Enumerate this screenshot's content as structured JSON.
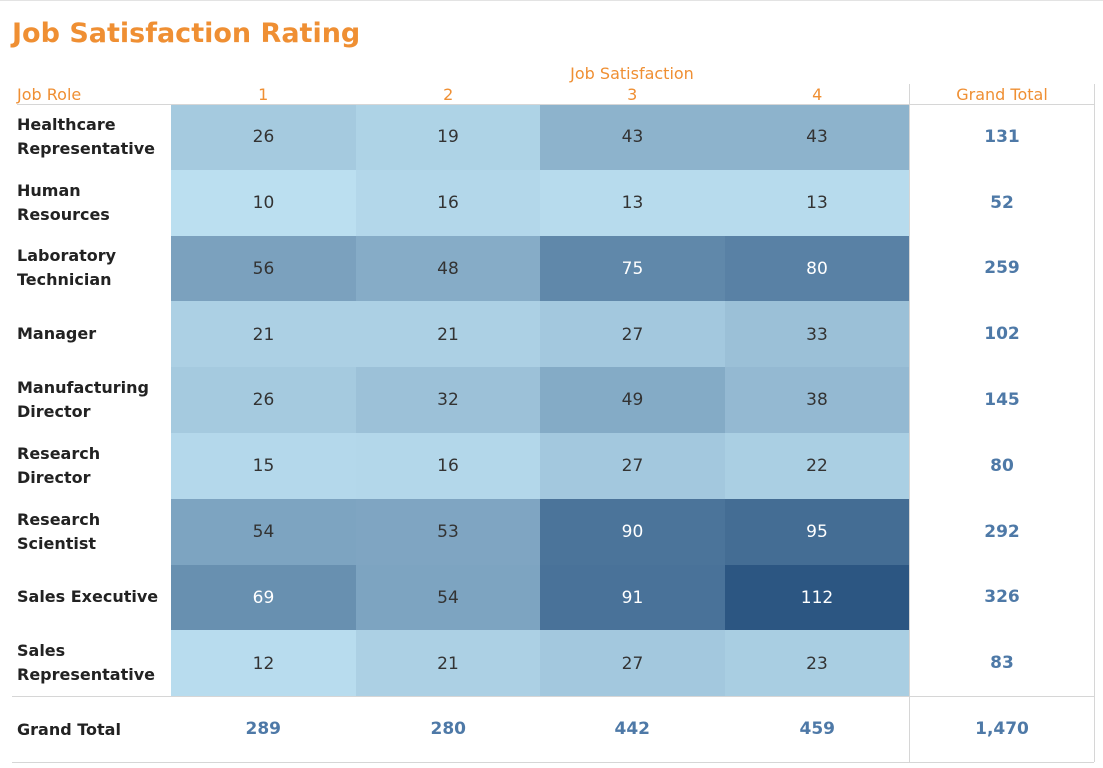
{
  "chart_data": {
    "type": "heatmap",
    "title": "Job Satisfaction Rating",
    "row_dimension": "Job Role",
    "column_dimension": "Job Satisfaction",
    "columns": [
      "1",
      "2",
      "3",
      "4"
    ],
    "rows": [
      {
        "label": "Healthcare\nRepresentative",
        "values": [
          26,
          19,
          43,
          43
        ],
        "total": "131"
      },
      {
        "label": "Human Resources",
        "values": [
          10,
          16,
          13,
          13
        ],
        "total": "52"
      },
      {
        "label": "Laboratory\nTechnician",
        "values": [
          56,
          48,
          75,
          80
        ],
        "total": "259"
      },
      {
        "label": "Manager",
        "values": [
          21,
          21,
          27,
          33
        ],
        "total": "102"
      },
      {
        "label": "Manufacturing\nDirector",
        "values": [
          26,
          32,
          49,
          38
        ],
        "total": "145"
      },
      {
        "label": "Research Director",
        "values": [
          15,
          16,
          27,
          22
        ],
        "total": "80"
      },
      {
        "label": "Research\nScientist",
        "values": [
          54,
          53,
          90,
          95
        ],
        "total": "292"
      },
      {
        "label": "Sales Executive",
        "values": [
          69,
          54,
          91,
          112
        ],
        "total": "326"
      },
      {
        "label": "Sales\nRepresentative",
        "values": [
          12,
          21,
          27,
          23
        ],
        "total": "83"
      }
    ],
    "grand_total_label": "Grand Total",
    "column_totals": [
      "289",
      "280",
      "442",
      "459"
    ],
    "grand_total": "1,470",
    "color_scale": {
      "low": "#bbdff0",
      "high": "#2c5682"
    },
    "value_range": [
      10,
      112
    ],
    "accent_color": "#ef8f33",
    "total_color": "#4e79a7"
  }
}
